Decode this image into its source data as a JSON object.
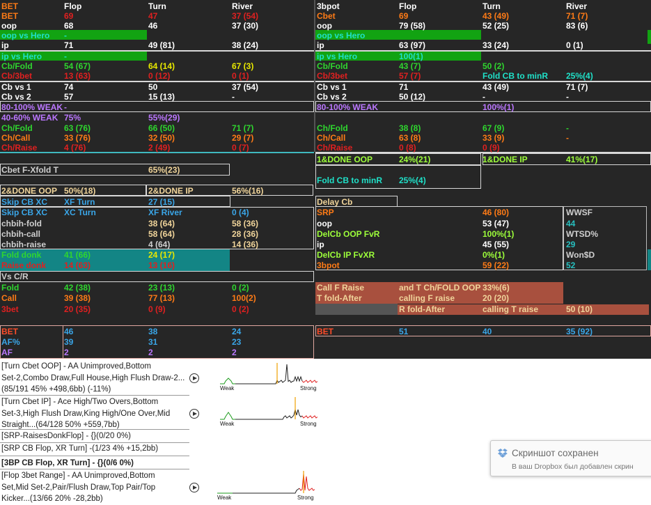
{
  "colors": {
    "white": "#ffffff",
    "orange": "#ff7b16",
    "red": "#e02020",
    "green": "#2fd62f",
    "yellow": "#e8e800",
    "lime": "#9dff3a",
    "cyan": "#1fe0c8",
    "purple": "#bb77ff",
    "blue": "#3aa6e8",
    "tan": "#f0d49a",
    "gray": "#cfcfcf",
    "orangeRed": "#ff4d2a",
    "teal": "#27c0c0",
    "pink": "#ff7b7b"
  },
  "hud": {
    "rows": [
      {
        "y": 2,
        "cells": [
          [
            2,
            "BET",
            "orange"
          ],
          [
            92,
            "Flop",
            "white"
          ],
          [
            213,
            "Turn",
            "white"
          ],
          [
            333,
            "River",
            "white"
          ],
          [
            455,
            "3bpot",
            "white"
          ],
          [
            573,
            "Flop",
            "white"
          ],
          [
            693,
            "Turn",
            "white"
          ],
          [
            813,
            "River",
            "white"
          ]
        ]
      },
      {
        "y": 16,
        "cells": [
          [
            2,
            "BET",
            "orange"
          ],
          [
            92,
            "69",
            "red"
          ],
          [
            213,
            "47",
            "red"
          ],
          [
            333,
            "37 (54)",
            "red"
          ],
          [
            455,
            "Cbet",
            "orange"
          ],
          [
            573,
            "69",
            "orange"
          ],
          [
            693,
            "43 (49)",
            "orange"
          ],
          [
            813,
            "71 (7)",
            "orange"
          ]
        ]
      },
      {
        "y": 30,
        "cells": [
          [
            2,
            "oop",
            "white"
          ],
          [
            92,
            "68",
            "white"
          ],
          [
            213,
            "46",
            "white"
          ],
          [
            333,
            "37 (30)",
            "white"
          ],
          [
            455,
            "oop",
            "white"
          ],
          [
            573,
            "79 (58)",
            "white"
          ],
          [
            693,
            "52 (25)",
            "white"
          ],
          [
            813,
            "83 (6)",
            "white"
          ]
        ]
      },
      {
        "y": 44,
        "cells": [
          [
            2,
            "oop vs Hero",
            "cyan"
          ],
          [
            92,
            "-",
            "cyan"
          ],
          [
            455,
            "oop vs Hero",
            "cyan"
          ]
        ]
      },
      {
        "y": 58,
        "cells": [
          [
            2,
            "ip",
            "white"
          ],
          [
            92,
            "71",
            "white"
          ],
          [
            213,
            "49 (81)",
            "white"
          ],
          [
            333,
            "38 (24)",
            "white"
          ],
          [
            455,
            "ip",
            "white"
          ],
          [
            573,
            "63 (97)",
            "white"
          ],
          [
            693,
            "33 (24)",
            "white"
          ],
          [
            813,
            "0 (1)",
            "white"
          ]
        ]
      },
      {
        "y": 74,
        "cells": [
          [
            2,
            "ip vs Hero",
            "cyan"
          ],
          [
            92,
            "-",
            "cyan"
          ],
          [
            455,
            "ip vs Hero",
            "cyan"
          ],
          [
            573,
            "100(1)",
            "cyan"
          ]
        ]
      },
      {
        "y": 88,
        "cells": [
          [
            2,
            "Cb/Fold",
            "green"
          ],
          [
            92,
            "54 (67)",
            "green"
          ],
          [
            213,
            "64 (14)",
            "yellow"
          ],
          [
            333,
            "67 (3)",
            "yellow"
          ],
          [
            455,
            "Cb/Fold",
            "green"
          ],
          [
            573,
            "43 (7)",
            "green"
          ],
          [
            693,
            "50 (2)",
            "green"
          ]
        ]
      },
      {
        "y": 102,
        "cells": [
          [
            2,
            "Cb/3bet",
            "red"
          ],
          [
            92,
            "13 (63)",
            "red"
          ],
          [
            213,
            "0 (12)",
            "red"
          ],
          [
            333,
            "0 (1)",
            "red"
          ],
          [
            455,
            "Cb/3bet",
            "red"
          ],
          [
            573,
            "57 (7)",
            "red"
          ],
          [
            693,
            "Fold CB to minR",
            "cyan"
          ],
          [
            813,
            "25%(4)",
            "cyan"
          ]
        ]
      },
      {
        "y": 118,
        "cells": [
          [
            2,
            "Cb vs 1",
            "white"
          ],
          [
            92,
            "74",
            "white"
          ],
          [
            213,
            "50",
            "white"
          ],
          [
            333,
            "37 (54)",
            "white"
          ],
          [
            455,
            "Cb vs 1",
            "white"
          ],
          [
            573,
            "71",
            "white"
          ],
          [
            693,
            "43 (49)",
            "white"
          ],
          [
            813,
            "71 (7)",
            "white"
          ]
        ]
      },
      {
        "y": 132,
        "cells": [
          [
            2,
            "Cb vs 2",
            "white"
          ],
          [
            92,
            "57",
            "white"
          ],
          [
            213,
            "15 (13)",
            "white"
          ],
          [
            333,
            "-",
            "white"
          ],
          [
            455,
            "Cb vs 2",
            "white"
          ],
          [
            573,
            "50 (12)",
            "white"
          ],
          [
            693,
            "-",
            "white"
          ],
          [
            813,
            "-",
            "white"
          ]
        ]
      },
      {
        "y": 147,
        "cells": [
          [
            2,
            "80-100% WEAK",
            "purple"
          ],
          [
            92,
            "-",
            "purple"
          ],
          [
            455,
            "80-100% WEAK",
            "purple"
          ],
          [
            693,
            "100%(1)",
            "purple"
          ]
        ]
      },
      {
        "y": 162,
        "cells": [
          [
            2,
            "40-60% WEAK",
            "purple"
          ],
          [
            92,
            "75%",
            "purple"
          ],
          [
            213,
            "55%(29)",
            "purple"
          ]
        ]
      },
      {
        "y": 177,
        "cells": [
          [
            2,
            "Ch/Fold",
            "green"
          ],
          [
            92,
            "63 (76)",
            "green"
          ],
          [
            213,
            "66 (50)",
            "green"
          ],
          [
            333,
            "71 (7)",
            "green"
          ],
          [
            455,
            "Ch/Fold",
            "green"
          ],
          [
            573,
            "38 (8)",
            "green"
          ],
          [
            693,
            "67 (9)",
            "green"
          ],
          [
            813,
            "-",
            "green"
          ]
        ]
      },
      {
        "y": 191,
        "cells": [
          [
            2,
            "Ch/Call",
            "orange"
          ],
          [
            92,
            "33 (76)",
            "orange"
          ],
          [
            213,
            "32 (50)",
            "orange"
          ],
          [
            333,
            "29 (7)",
            "orange"
          ],
          [
            455,
            "Ch/Call",
            "orange"
          ],
          [
            573,
            "63 (8)",
            "orange"
          ],
          [
            693,
            "33 (9)",
            "orange"
          ],
          [
            813,
            "-",
            "orange"
          ]
        ]
      },
      {
        "y": 205,
        "cells": [
          [
            2,
            "Ch/Raise",
            "red"
          ],
          [
            92,
            "4 (76)",
            "red"
          ],
          [
            213,
            "2 (49)",
            "red"
          ],
          [
            333,
            "0 (7)",
            "red"
          ],
          [
            455,
            "Ch/Raise",
            "red"
          ],
          [
            573,
            "0 (8)",
            "red"
          ],
          [
            693,
            "0 (9)",
            "red"
          ]
        ]
      },
      {
        "y": 222,
        "cells": [
          [
            455,
            "1&DONE OOP",
            "lime"
          ],
          [
            573,
            "24%(21)",
            "lime"
          ],
          [
            693,
            "1&DONE IP",
            "lime"
          ],
          [
            813,
            "41%(17)",
            "lime"
          ]
        ]
      },
      {
        "y": 237,
        "cells": [
          [
            2,
            "Cbet F-Xfold T",
            "gray"
          ],
          [
            213,
            "65%(23)",
            "tan"
          ]
        ]
      },
      {
        "y": 252,
        "cells": [
          [
            455,
            "Fold CB to minR",
            "cyan"
          ],
          [
            573,
            "25%(4)",
            "cyan"
          ]
        ]
      },
      {
        "y": 267,
        "cells": [
          [
            2,
            "2&DONE OOP",
            "tan"
          ],
          [
            92,
            "50%(18)",
            "tan"
          ],
          [
            213,
            "2&DONE IP",
            "tan"
          ],
          [
            333,
            "56%(16)",
            "tan"
          ]
        ]
      },
      {
        "y": 283,
        "cells": [
          [
            2,
            "Skip CB XC",
            "blue"
          ],
          [
            92,
            "XF Turn",
            "blue"
          ],
          [
            213,
            "27 (15)",
            "blue"
          ],
          [
            455,
            "Delay Cb",
            "tan"
          ]
        ]
      },
      {
        "y": 298,
        "cells": [
          [
            2,
            "Skip CB XC",
            "blue"
          ],
          [
            92,
            "XC Turn",
            "blue"
          ],
          [
            213,
            "XF River",
            "blue"
          ],
          [
            333,
            "0 (4)",
            "blue"
          ],
          [
            455,
            "SRP",
            "orange"
          ],
          [
            693,
            "46 (80)",
            "orange"
          ],
          [
            813,
            "WWSF",
            "gray"
          ]
        ]
      },
      {
        "y": 314,
        "cells": [
          [
            2,
            "chbih-fold",
            "gray"
          ],
          [
            213,
            "38 (64)",
            "tan"
          ],
          [
            333,
            "58 (36)",
            "tan"
          ],
          [
            455,
            "oop",
            "white"
          ],
          [
            693,
            "53 (47)",
            "white"
          ],
          [
            813,
            "44",
            "teal"
          ]
        ]
      },
      {
        "y": 329,
        "cells": [
          [
            2,
            "chbih-call",
            "gray"
          ],
          [
            213,
            "58 (64)",
            "tan"
          ],
          [
            333,
            "28 (36)",
            "tan"
          ],
          [
            455,
            "DelCb OOP FvR",
            "lime"
          ],
          [
            693,
            "100%(1)",
            "lime"
          ],
          [
            813,
            "WTSD%",
            "gray"
          ]
        ]
      },
      {
        "y": 344,
        "cells": [
          [
            2,
            "chbih-raise",
            "gray"
          ],
          [
            213,
            "4 (64)",
            "gray"
          ],
          [
            333,
            "14 (36)",
            "tan"
          ],
          [
            455,
            "ip",
            "white"
          ],
          [
            693,
            "45 (55)",
            "white"
          ],
          [
            813,
            "29",
            "teal"
          ]
        ]
      },
      {
        "y": 359,
        "cells": [
          [
            2,
            "Fold donk",
            "green"
          ],
          [
            92,
            "41 (66)",
            "green"
          ],
          [
            213,
            "24 (17)",
            "yellow"
          ],
          [
            455,
            "DelCb IP FvXR",
            "lime"
          ],
          [
            693,
            "0%(1)",
            "lime"
          ],
          [
            813,
            "Won$D",
            "gray"
          ]
        ]
      },
      {
        "y": 374,
        "cells": [
          [
            2,
            "Raise donk",
            "red"
          ],
          [
            92,
            "14 (63)",
            "red"
          ],
          [
            213,
            "13 (16)",
            "red"
          ],
          [
            455,
            "3bpot",
            "orange"
          ],
          [
            693,
            "59 (22)",
            "orange"
          ],
          [
            813,
            "52",
            "teal"
          ]
        ]
      },
      {
        "y": 390,
        "cells": [
          [
            2,
            "Vs C/R",
            "gray"
          ]
        ]
      },
      {
        "y": 406,
        "cells": [
          [
            2,
            "Fold",
            "green"
          ],
          [
            92,
            "42 (38)",
            "green"
          ],
          [
            213,
            "23 (13)",
            "green"
          ],
          [
            333,
            "0 (2)",
            "green"
          ],
          [
            455,
            "Call F Raise",
            "tan"
          ],
          [
            573,
            "and T Ch/FOLD OOP",
            "tan"
          ],
          [
            693,
            "33%(6)",
            "tan"
          ]
        ]
      },
      {
        "y": 421,
        "cells": [
          [
            2,
            "Call",
            "orange"
          ],
          [
            92,
            "39 (38)",
            "orange"
          ],
          [
            213,
            "77 (13)",
            "orange"
          ],
          [
            333,
            "100(2)",
            "orange"
          ],
          [
            455,
            "T fold-After",
            "tan"
          ],
          [
            573,
            "calling F raise",
            "tan"
          ],
          [
            693,
            "20 (20)",
            "tan"
          ]
        ]
      },
      {
        "y": 437,
        "cells": [
          [
            2,
            "3bet",
            "red"
          ],
          [
            92,
            "20 (35)",
            "red"
          ],
          [
            213,
            "0 (9)",
            "red"
          ],
          [
            333,
            "0 (2)",
            "red"
          ],
          [
            573,
            "R fold-After",
            "tan"
          ],
          [
            693,
            "calling T raise",
            "tan"
          ],
          [
            813,
            "50 (10)",
            "tan"
          ]
        ]
      },
      {
        "y": 469,
        "cells": [
          [
            2,
            "BET",
            "orangeRed"
          ],
          [
            92,
            "46",
            "blue"
          ],
          [
            213,
            "38",
            "blue"
          ],
          [
            333,
            "24",
            "blue"
          ],
          [
            455,
            "BET",
            "orangeRed"
          ],
          [
            573,
            "51",
            "blue"
          ],
          [
            693,
            "40",
            "blue"
          ],
          [
            813,
            "35 (92)",
            "blue"
          ]
        ]
      },
      {
        "y": 484,
        "cells": [
          [
            2,
            "AF%",
            "blue"
          ],
          [
            92,
            "39",
            "blue"
          ],
          [
            213,
            "31",
            "blue"
          ],
          [
            333,
            "23",
            "blue"
          ]
        ]
      },
      {
        "y": 499,
        "cells": [
          [
            2,
            "AF",
            "purple"
          ],
          [
            92,
            "2",
            "purple"
          ],
          [
            213,
            "2",
            "purple"
          ],
          [
            333,
            "2",
            "purple"
          ]
        ]
      }
    ]
  },
  "entries": [
    {
      "lines": [
        "[Turn Cbet OOP] - AA Unimproved,Bottom",
        "Set-2,Combo Draw,Full House,High Flush Draw-2...",
        "(85/191 45% +498,6bb) (-11%)"
      ],
      "chart": {
        "weak": "Weak",
        "strong": "Strong"
      }
    },
    {
      "lines": [
        "[Turn Cbet IP] - Ace High/Two Overs,Bottom",
        "Set-3,High Flush Draw,King High/One Over,Mid",
        "Straight...(64/128 50% +559,7bb)"
      ],
      "chart": {
        "weak": "Weak",
        "strong": "Strong"
      }
    },
    {
      "lines": [
        "[SRP-RaisesDonkFlop] - {}(0/20 0%)"
      ]
    },
    {
      "lines": [
        "[SRP CB Flop, XR Turn] -(1/23 4% +15,2bb)"
      ]
    },
    {
      "lines": [
        "[3BP CB Flop, XR Turn] - {}(0/6 0%)"
      ],
      "bold": true
    },
    {
      "lines": [
        "[Flop 3bet Range] - AA Unimproved,Bottom",
        "Set,Mid Set-2,Pair/Flush Draw,Top Pair/Top",
        "Kicker...(13/66 20% -28,2bb)"
      ],
      "chart": {
        "weak": "Weak",
        "strong": "Strong"
      }
    }
  ],
  "toast": {
    "title": "Скриншот сохранен",
    "subtitle": "В ваш Dropbox был добавлен скрин"
  }
}
